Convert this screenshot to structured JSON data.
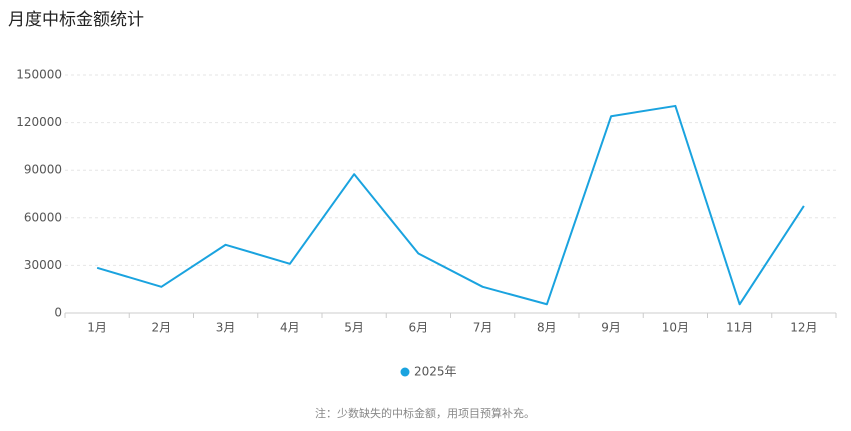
{
  "chart_data": {
    "type": "line",
    "title": "月度中标金额统计",
    "categories": [
      "1月",
      "2月",
      "3月",
      "4月",
      "5月",
      "6月",
      "7月",
      "8月",
      "9月",
      "10月",
      "11月",
      "12月"
    ],
    "series": [
      {
        "name": "2025年",
        "color": "#1aa3df",
        "values": [
          28500,
          16500,
          43000,
          31000,
          87500,
          37500,
          16500,
          5500,
          124000,
          130500,
          5500,
          67500
        ]
      }
    ],
    "ylim": [
      0,
      150000
    ],
    "yticks": [
      0,
      30000,
      60000,
      90000,
      120000,
      150000
    ],
    "grid": true,
    "note": "注：少数缺失的中标金额，用项目预算补充。"
  }
}
